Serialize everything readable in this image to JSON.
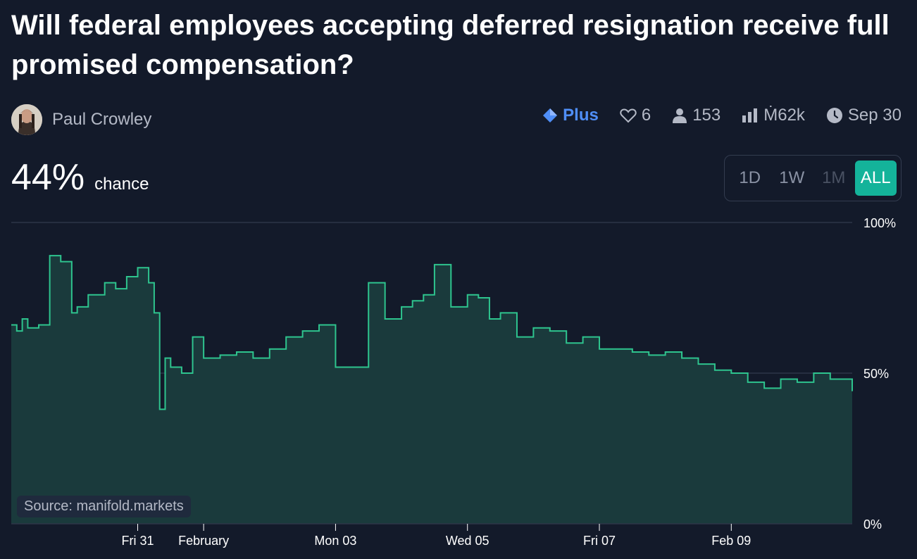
{
  "question": {
    "title": "Will federal employees accepting deferred resignation receive full promised compensation?"
  },
  "author": {
    "name": "Paul Crowley",
    "avatar_icon": "avatar-photo"
  },
  "meta": {
    "plus_label": "Plus",
    "likes": "6",
    "traders": "153",
    "volume": "Ṁ62k",
    "close_date": "Sep 30"
  },
  "probability": {
    "value": "44%",
    "label": "chance"
  },
  "time_range": {
    "options": [
      "1D",
      "1W",
      "1M",
      "ALL"
    ],
    "selected": "ALL",
    "disabled": [
      "1M"
    ]
  },
  "source": "Source: manifold.markets",
  "colors": {
    "background": "#131a2a",
    "line": "#2ec48e",
    "fill": "#1a3a3c",
    "accent": "#14b39a",
    "plus": "#4f8ef7"
  },
  "chart_data": {
    "type": "area",
    "ylim": [
      0,
      100
    ],
    "y_ticks": [
      "100%",
      "50%",
      "0%"
    ],
    "y_tick_values": [
      100,
      50,
      0
    ],
    "x_ticks": [
      "Fri 31",
      "February",
      "Mon 03",
      "Wed 05",
      "Fri 07",
      "Feb 09"
    ],
    "x_tick_dates": [
      "2025-01-31",
      "2025-02-01",
      "2025-02-03",
      "2025-02-05",
      "2025-02-07",
      "2025-02-09"
    ],
    "x_range": [
      "2025-01-29T02:00",
      "2025-02-10T20:00"
    ],
    "series": [
      {
        "x": [
          "2025-01-29T02:00",
          "2025-01-29T04:00",
          "2025-01-29T06:00",
          "2025-01-29T08:00",
          "2025-01-29T12:00",
          "2025-01-29T16:00",
          "2025-01-29T20:00",
          "2025-01-30T00:00",
          "2025-01-30T02:00",
          "2025-01-30T06:00",
          "2025-01-30T12:00",
          "2025-01-30T16:00",
          "2025-01-30T20:00",
          "2025-01-31T00:00",
          "2025-01-31T04:00",
          "2025-01-31T06:00",
          "2025-01-31T08:00",
          "2025-01-31T10:00",
          "2025-01-31T12:00",
          "2025-01-31T16:00",
          "2025-01-31T20:00",
          "2025-02-01T00:00",
          "2025-02-01T06:00",
          "2025-02-01T12:00",
          "2025-02-01T18:00",
          "2025-02-02T00:00",
          "2025-02-02T06:00",
          "2025-02-02T12:00",
          "2025-02-02T18:00",
          "2025-02-03T00:00",
          "2025-02-03T06:00",
          "2025-02-03T12:00",
          "2025-02-03T18:00",
          "2025-02-04T00:00",
          "2025-02-04T04:00",
          "2025-02-04T08:00",
          "2025-02-04T12:00",
          "2025-02-04T18:00",
          "2025-02-05T00:00",
          "2025-02-05T04:00",
          "2025-02-05T08:00",
          "2025-02-05T12:00",
          "2025-02-05T18:00",
          "2025-02-06T00:00",
          "2025-02-06T06:00",
          "2025-02-06T12:00",
          "2025-02-06T18:00",
          "2025-02-07T00:00",
          "2025-02-07T06:00",
          "2025-02-07T12:00",
          "2025-02-07T18:00",
          "2025-02-08T00:00",
          "2025-02-08T06:00",
          "2025-02-08T12:00",
          "2025-02-08T18:00",
          "2025-02-09T00:00",
          "2025-02-09T06:00",
          "2025-02-09T12:00",
          "2025-02-09T18:00",
          "2025-02-10T00:00",
          "2025-02-10T06:00",
          "2025-02-10T12:00",
          "2025-02-10T18:00",
          "2025-02-10T20:00"
        ],
        "y": [
          66,
          64,
          68,
          65,
          66,
          89,
          87,
          70,
          72,
          76,
          80,
          78,
          82,
          85,
          80,
          70,
          38,
          55,
          52,
          50,
          62,
          55,
          56,
          57,
          55,
          58,
          62,
          64,
          66,
          52,
          52,
          80,
          68,
          72,
          74,
          76,
          86,
          72,
          76,
          75,
          68,
          70,
          62,
          65,
          64,
          60,
          62,
          58,
          58,
          57,
          56,
          57,
          55,
          53,
          51,
          50,
          47,
          45,
          48,
          47,
          50,
          48,
          48,
          44
        ]
      }
    ]
  }
}
